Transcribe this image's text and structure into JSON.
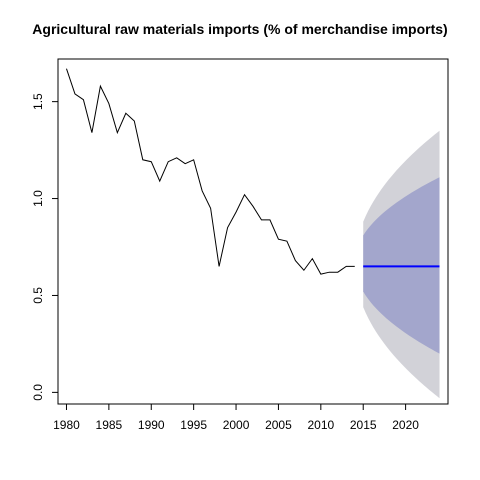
{
  "chart_data": {
    "type": "line",
    "title": "Agricultural raw materials imports (% of merchandise imports)",
    "xlabel": "",
    "ylabel": "",
    "xlim": [
      1979,
      2025
    ],
    "ylim": [
      -0.06,
      1.72
    ],
    "x_ticks": [
      1980,
      1985,
      1990,
      1995,
      2000,
      2005,
      2010,
      2015,
      2020
    ],
    "y_ticks": [
      0.0,
      0.5,
      1.0,
      1.5
    ],
    "y_tick_labels": [
      "0.0",
      "0.5",
      "1.0",
      "1.5"
    ],
    "grid": false,
    "legend": "none",
    "series": [
      {
        "x": [
          1980,
          1981,
          1982,
          1983,
          1984,
          1985,
          1986,
          1987,
          1988,
          1989,
          1990,
          1991,
          1992,
          1993,
          1994,
          1995,
          1996,
          1997,
          1998,
          1999,
          2000,
          2001,
          2002,
          2003,
          2004,
          2005,
          2006,
          2007,
          2008,
          2009,
          2010,
          2011,
          2012,
          2013,
          2014
        ],
        "values": [
          1.67,
          1.54,
          1.51,
          1.34,
          1.58,
          1.49,
          1.34,
          1.44,
          1.4,
          1.2,
          1.19,
          1.09,
          1.19,
          1.21,
          1.18,
          1.2,
          1.04,
          0.95,
          0.65,
          0.85,
          0.93,
          1.02,
          0.96,
          0.89,
          0.89,
          0.79,
          0.78,
          0.68,
          0.63,
          0.69,
          0.61,
          0.62,
          0.62,
          0.65,
          0.65
        ],
        "color": "#000000"
      }
    ],
    "forecast": {
      "x": [
        2015,
        2024
      ],
      "point_value": 0.65,
      "point_color": "#0000ff",
      "band_80": {
        "x": [
          2015,
          2024
        ],
        "upper": [
          0.81,
          1.11
        ],
        "lower": [
          0.52,
          0.2
        ],
        "color": "#a3a6cc"
      },
      "band_95": {
        "x": [
          2015,
          2024
        ],
        "upper": [
          0.88,
          1.35
        ],
        "lower": [
          0.44,
          -0.03
        ],
        "color": "#d2d2d8"
      }
    }
  }
}
